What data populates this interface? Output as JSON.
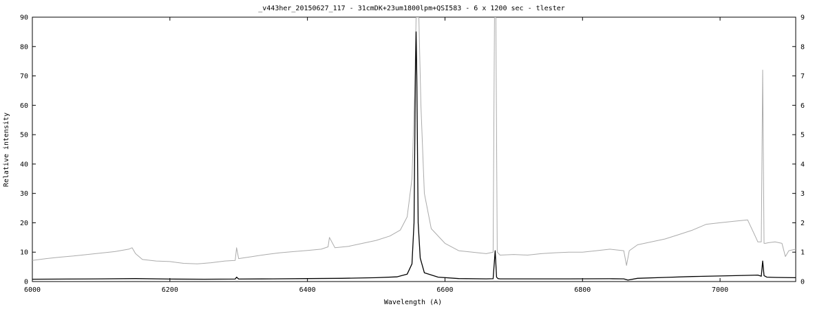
{
  "chart_data": {
    "type": "line",
    "title": "_v443her_20150627_117 - 31cmDK+23um1800lpm+QSI583 - 6 x 1200 sec - tlester",
    "xlabel": "Wavelength (A)",
    "ylabel": "Relative intensity",
    "xlim": [
      6000,
      7110
    ],
    "ylim_left": [
      0,
      90
    ],
    "ylim_right": [
      0,
      9
    ],
    "x_ticks": [
      6000,
      6200,
      6400,
      6600,
      6800,
      7000
    ],
    "x_tick_labels": [
      "6000",
      "6200",
      "6400",
      "6600",
      "6800",
      "7000"
    ],
    "y_left_ticks": [
      0,
      10,
      20,
      30,
      40,
      50,
      60,
      70,
      80,
      90
    ],
    "y_left_tick_labels": [
      "0",
      "10",
      "20",
      "30",
      "40",
      "50",
      "60",
      "70",
      "80",
      "90"
    ],
    "y_right_ticks": [
      0,
      1,
      2,
      3,
      4,
      5,
      6,
      7,
      8,
      9
    ],
    "y_right_tick_labels": [
      "0",
      "1",
      "2",
      "3",
      "4",
      "5",
      "6",
      "7",
      "8",
      "9"
    ],
    "grid": false,
    "series": [
      {
        "color": "#aaaaaa",
        "axis": "right",
        "x": [
          6000,
          6020,
          6040,
          6060,
          6080,
          6100,
          6120,
          6140,
          6145,
          6150,
          6160,
          6180,
          6200,
          6220,
          6240,
          6260,
          6280,
          6295,
          6297,
          6300,
          6320,
          6340,
          6360,
          6380,
          6400,
          6420,
          6430,
          6432,
          6440,
          6460,
          6480,
          6500,
          6520,
          6535,
          6545,
          6552,
          6556,
          6558,
          6560,
          6562,
          6565,
          6570,
          6580,
          6600,
          6620,
          6640,
          6660,
          6670,
          6672,
          6674,
          6676,
          6680,
          6700,
          6720,
          6740,
          6760,
          6780,
          6800,
          6820,
          6840,
          6860,
          6864,
          6868,
          6880,
          6900,
          6920,
          6940,
          6960,
          6980,
          7000,
          7020,
          7040,
          7050,
          7055,
          7060,
          7062,
          7064,
          7066,
          7070,
          7080,
          7090,
          7095,
          7100,
          7110
        ],
        "y": [
          0.72,
          0.78,
          0.83,
          0.87,
          0.92,
          0.97,
          1.02,
          1.1,
          1.15,
          0.95,
          0.75,
          0.7,
          0.68,
          0.62,
          0.6,
          0.64,
          0.7,
          0.72,
          1.15,
          0.78,
          0.85,
          0.92,
          0.98,
          1.02,
          1.06,
          1.1,
          1.18,
          1.5,
          1.15,
          1.2,
          1.3,
          1.4,
          1.55,
          1.75,
          2.2,
          3.5,
          6.5,
          9.0,
          9.0,
          9.0,
          6.0,
          3.0,
          1.8,
          1.3,
          1.05,
          1.0,
          0.95,
          1.0,
          9.0,
          9.0,
          1.0,
          0.9,
          0.92,
          0.9,
          0.95,
          0.98,
          1.0,
          1.0,
          1.05,
          1.1,
          1.05,
          0.55,
          1.05,
          1.25,
          1.35,
          1.45,
          1.6,
          1.75,
          1.95,
          2.0,
          2.05,
          2.1,
          1.6,
          1.35,
          1.35,
          7.2,
          1.3,
          1.3,
          1.32,
          1.35,
          1.3,
          0.85,
          1.05,
          1.1
        ]
      },
      {
        "color": "#000000",
        "axis": "left",
        "x": [
          6000,
          6050,
          6100,
          6150,
          6200,
          6250,
          6295,
          6297,
          6300,
          6350,
          6400,
          6450,
          6500,
          6530,
          6545,
          6552,
          6555,
          6557,
          6558,
          6559,
          6561,
          6564,
          6570,
          6590,
          6620,
          6660,
          6670,
          6673,
          6675,
          6677,
          6680,
          6720,
          6780,
          6840,
          6860,
          6866,
          6880,
          6920,
          6960,
          7000,
          7040,
          7055,
          7060,
          7062,
          7064,
          7068,
          7080,
          7110
        ],
        "y": [
          0.8,
          0.85,
          0.9,
          1.0,
          0.85,
          0.8,
          0.85,
          1.5,
          0.85,
          0.9,
          1.0,
          1.1,
          1.3,
          1.6,
          2.5,
          6.0,
          20.0,
          70.0,
          85.0,
          70.0,
          20.0,
          8.0,
          3.0,
          1.5,
          1.0,
          0.9,
          0.95,
          10.5,
          1.5,
          1.0,
          0.9,
          0.9,
          0.9,
          0.95,
          0.9,
          0.5,
          1.1,
          1.4,
          1.7,
          1.9,
          2.1,
          2.2,
          1.8,
          7.0,
          2.0,
          1.5,
          1.4,
          1.3
        ]
      }
    ]
  }
}
